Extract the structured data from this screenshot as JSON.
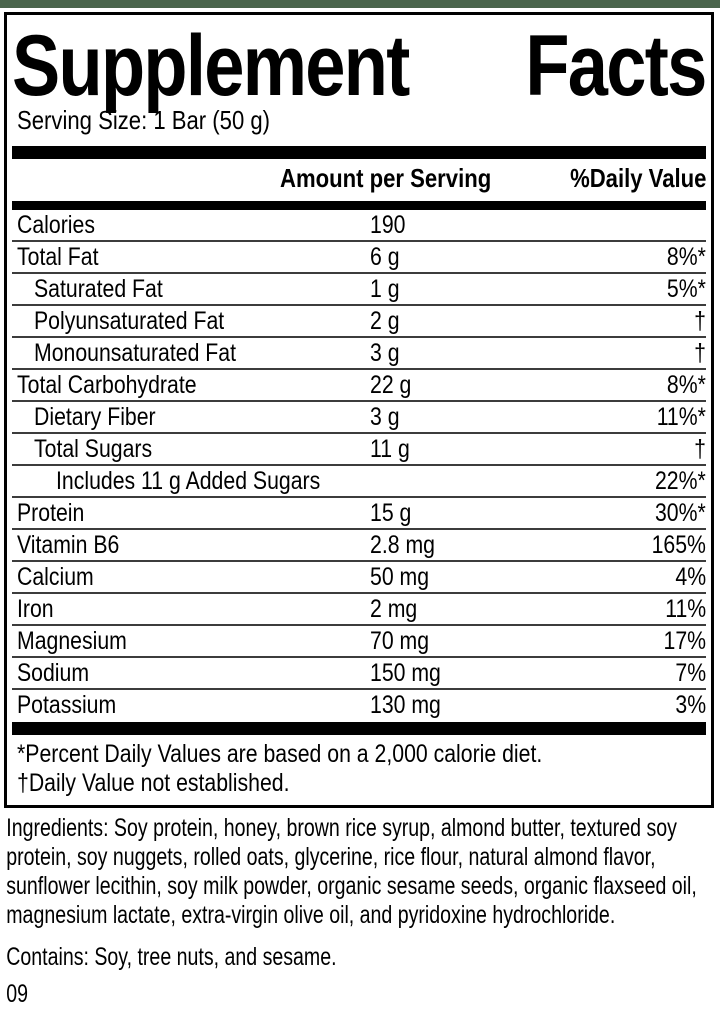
{
  "brand_bar": {
    "color": "#4a654c"
  },
  "label": {
    "title_word1": "Supplement",
    "title_word2": "Facts",
    "serving_size": "Serving Size: 1 Bar (50 g)",
    "headers": {
      "amount": "Amount per Serving",
      "daily_value": "%Daily Value"
    },
    "rows": [
      {
        "name": "Calories",
        "amount": "190",
        "dv": "",
        "indent": 0
      },
      {
        "name": "Total Fat",
        "amount": "6 g",
        "dv": "8%*",
        "indent": 0
      },
      {
        "name": "Saturated Fat",
        "amount": "1 g",
        "dv": "5%*",
        "indent": 1
      },
      {
        "name": "Polyunsaturated Fat",
        "amount": "2 g",
        "dv": "†",
        "indent": 1
      },
      {
        "name": "Monounsaturated Fat",
        "amount": "3 g",
        "dv": "†",
        "indent": 1
      },
      {
        "name": "Total Carbohydrate",
        "amount": "22 g",
        "dv": "8%*",
        "indent": 0
      },
      {
        "name": "Dietary Fiber",
        "amount": "3 g",
        "dv": "11%*",
        "indent": 1
      },
      {
        "name": "Total Sugars",
        "amount": "11 g",
        "dv": "†",
        "indent": 1
      },
      {
        "name": "Includes 11 g Added Sugars",
        "amount": "",
        "dv": "22%*",
        "indent": 2
      },
      {
        "name": "Protein",
        "amount": "15 g",
        "dv": "30%*",
        "indent": 0
      },
      {
        "name": "Vitamin B6",
        "amount": "2.8 mg",
        "dv": "165%",
        "indent": 0
      },
      {
        "name": "Calcium",
        "amount": "50 mg",
        "dv": "4%",
        "indent": 0
      },
      {
        "name": "Iron",
        "amount": "2 mg",
        "dv": "11%",
        "indent": 0
      },
      {
        "name": "Magnesium",
        "amount": "70 mg",
        "dv": "17%",
        "indent": 0
      },
      {
        "name": "Sodium",
        "amount": "150 mg",
        "dv": "7%",
        "indent": 0
      },
      {
        "name": "Potassium",
        "amount": "130 mg",
        "dv": "3%",
        "indent": 0
      }
    ],
    "footnotes": [
      "*Percent Daily Values are based on a 2,000 calorie diet.",
      "†Daily Value not established."
    ]
  },
  "ingredients": "Ingredients: Soy protein, honey, brown rice syrup, almond butter, textured soy protein, soy nuggets, rolled oats, glycerine, rice flour, natural almond flavor, sunflower lecithin, soy milk powder, organic sesame seeds, organic flaxseed oil, magnesium lactate, extra-virgin olive oil, and pyridoxine hydrochloride.",
  "contains": "Contains: Soy, tree nuts, and sesame.",
  "code": "09"
}
